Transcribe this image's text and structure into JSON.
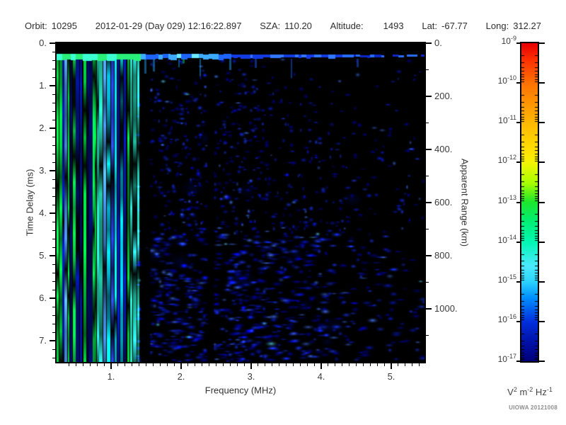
{
  "header": {
    "orbit_label": "Orbit:",
    "orbit": "10295",
    "datetime": "2012-01-29 (Day 029) 12:16:22.897",
    "sza_label": "SZA:",
    "sza": "110.20",
    "altitude_label": "Altitude:",
    "altitude": "1493",
    "lat_label": "Lat:",
    "lat": "-67.77",
    "long_label": "Long:",
    "long": "312.27"
  },
  "credit": "UIOWA 20121008",
  "chart_data": {
    "type": "heatmap",
    "subtype": "radar-sounder-ionogram",
    "title": "",
    "xlabel": "Frequency (MHz)",
    "ylabel_left": "Time Delay (ms)",
    "ylabel_right": "Apparent Range (km)",
    "x_axis": {
      "range": [
        0.22,
        5.47
      ],
      "major_ticks": [
        {
          "value": 1,
          "label": "1."
        },
        {
          "value": 2,
          "label": "2."
        },
        {
          "value": 3,
          "label": "3."
        },
        {
          "value": 4,
          "label": "4."
        },
        {
          "value": 5,
          "label": "5."
        }
      ],
      "minor_step": 0.1
    },
    "y_axis_left": {
      "range": [
        0,
        7.5
      ],
      "major_ticks": [
        {
          "value": 0,
          "label": "0."
        },
        {
          "value": 1,
          "label": "1."
        },
        {
          "value": 2,
          "label": "2."
        },
        {
          "value": 3,
          "label": "3."
        },
        {
          "value": 4,
          "label": "4."
        },
        {
          "value": 5,
          "label": "5."
        },
        {
          "value": 6,
          "label": "6."
        },
        {
          "value": 7,
          "label": "7."
        }
      ],
      "minor_step": 0.2
    },
    "y_axis_right": {
      "range": [
        0,
        1185
      ],
      "major_ticks": [
        {
          "value": 0,
          "label": "0."
        },
        {
          "value": 200,
          "label": "200."
        },
        {
          "value": 400,
          "label": "400."
        },
        {
          "value": 600,
          "label": "600."
        },
        {
          "value": 800,
          "label": "800."
        },
        {
          "value": 1000,
          "label": "1000."
        }
      ],
      "minor_step": 100
    },
    "colorbar": {
      "scale": "log",
      "tick_exponents": [
        "-9",
        "-10",
        "-11",
        "-12",
        "-13",
        "-14",
        "-15",
        "-16",
        "-17"
      ],
      "unit_parts": [
        [
          "V",
          "2"
        ],
        [
          "m",
          "-2"
        ],
        [
          "Hz",
          "-1"
        ]
      ],
      "gradient_stops": [
        {
          "pos": 0.0,
          "color": "#e80000"
        },
        {
          "pos": 0.055,
          "color": "#ff3300"
        },
        {
          "pos": 0.125,
          "color": "#ff7100"
        },
        {
          "pos": 0.25,
          "color": "#ffb800"
        },
        {
          "pos": 0.345,
          "color": "#ffe400"
        },
        {
          "pos": 0.375,
          "color": "#f4f400"
        },
        {
          "pos": 0.44,
          "color": "#a8ff00"
        },
        {
          "pos": 0.5,
          "color": "#1ce62e"
        },
        {
          "pos": 0.563,
          "color": "#00f078"
        },
        {
          "pos": 0.625,
          "color": "#00f7b2"
        },
        {
          "pos": 0.7,
          "color": "#4ceaff"
        },
        {
          "pos": 0.75,
          "color": "#2cd4ff"
        },
        {
          "pos": 0.8,
          "color": "#0090ff"
        },
        {
          "pos": 0.875,
          "color": "#0030dd"
        },
        {
          "pos": 0.94,
          "color": "#0012a8"
        },
        {
          "pos": 1.0,
          "color": "#000078"
        }
      ]
    },
    "features": {
      "blank_top_ms": 0.23,
      "surface_trace_ms": 0.3,
      "surface_trace_note": "bright horizontal echo at ~0.3 ms across all frequencies; green-cyan (1e-13) below ~1.4 MHz, fading to weak blue (1e-16) with gaps above 4 MHz",
      "striation_band_mhz": [
        0.22,
        1.38
      ],
      "striation_note": "dense vertical plasma-oscillation striations, green/cyan/blue (1e-13 to 1e-15), spanning all time delays",
      "gap_bands_mhz": [
        [
          1.42,
          1.56
        ],
        [
          2.38,
          2.47
        ]
      ],
      "gap_note": "near-black vertical gaps (below 1e-17)",
      "speckle_band_mhz": [
        1.56,
        5.47
      ],
      "speckle_note": "diffuse weak blue noise speckle (~1e-16), density decreasing with frequency and increasing toward long delays"
    }
  }
}
